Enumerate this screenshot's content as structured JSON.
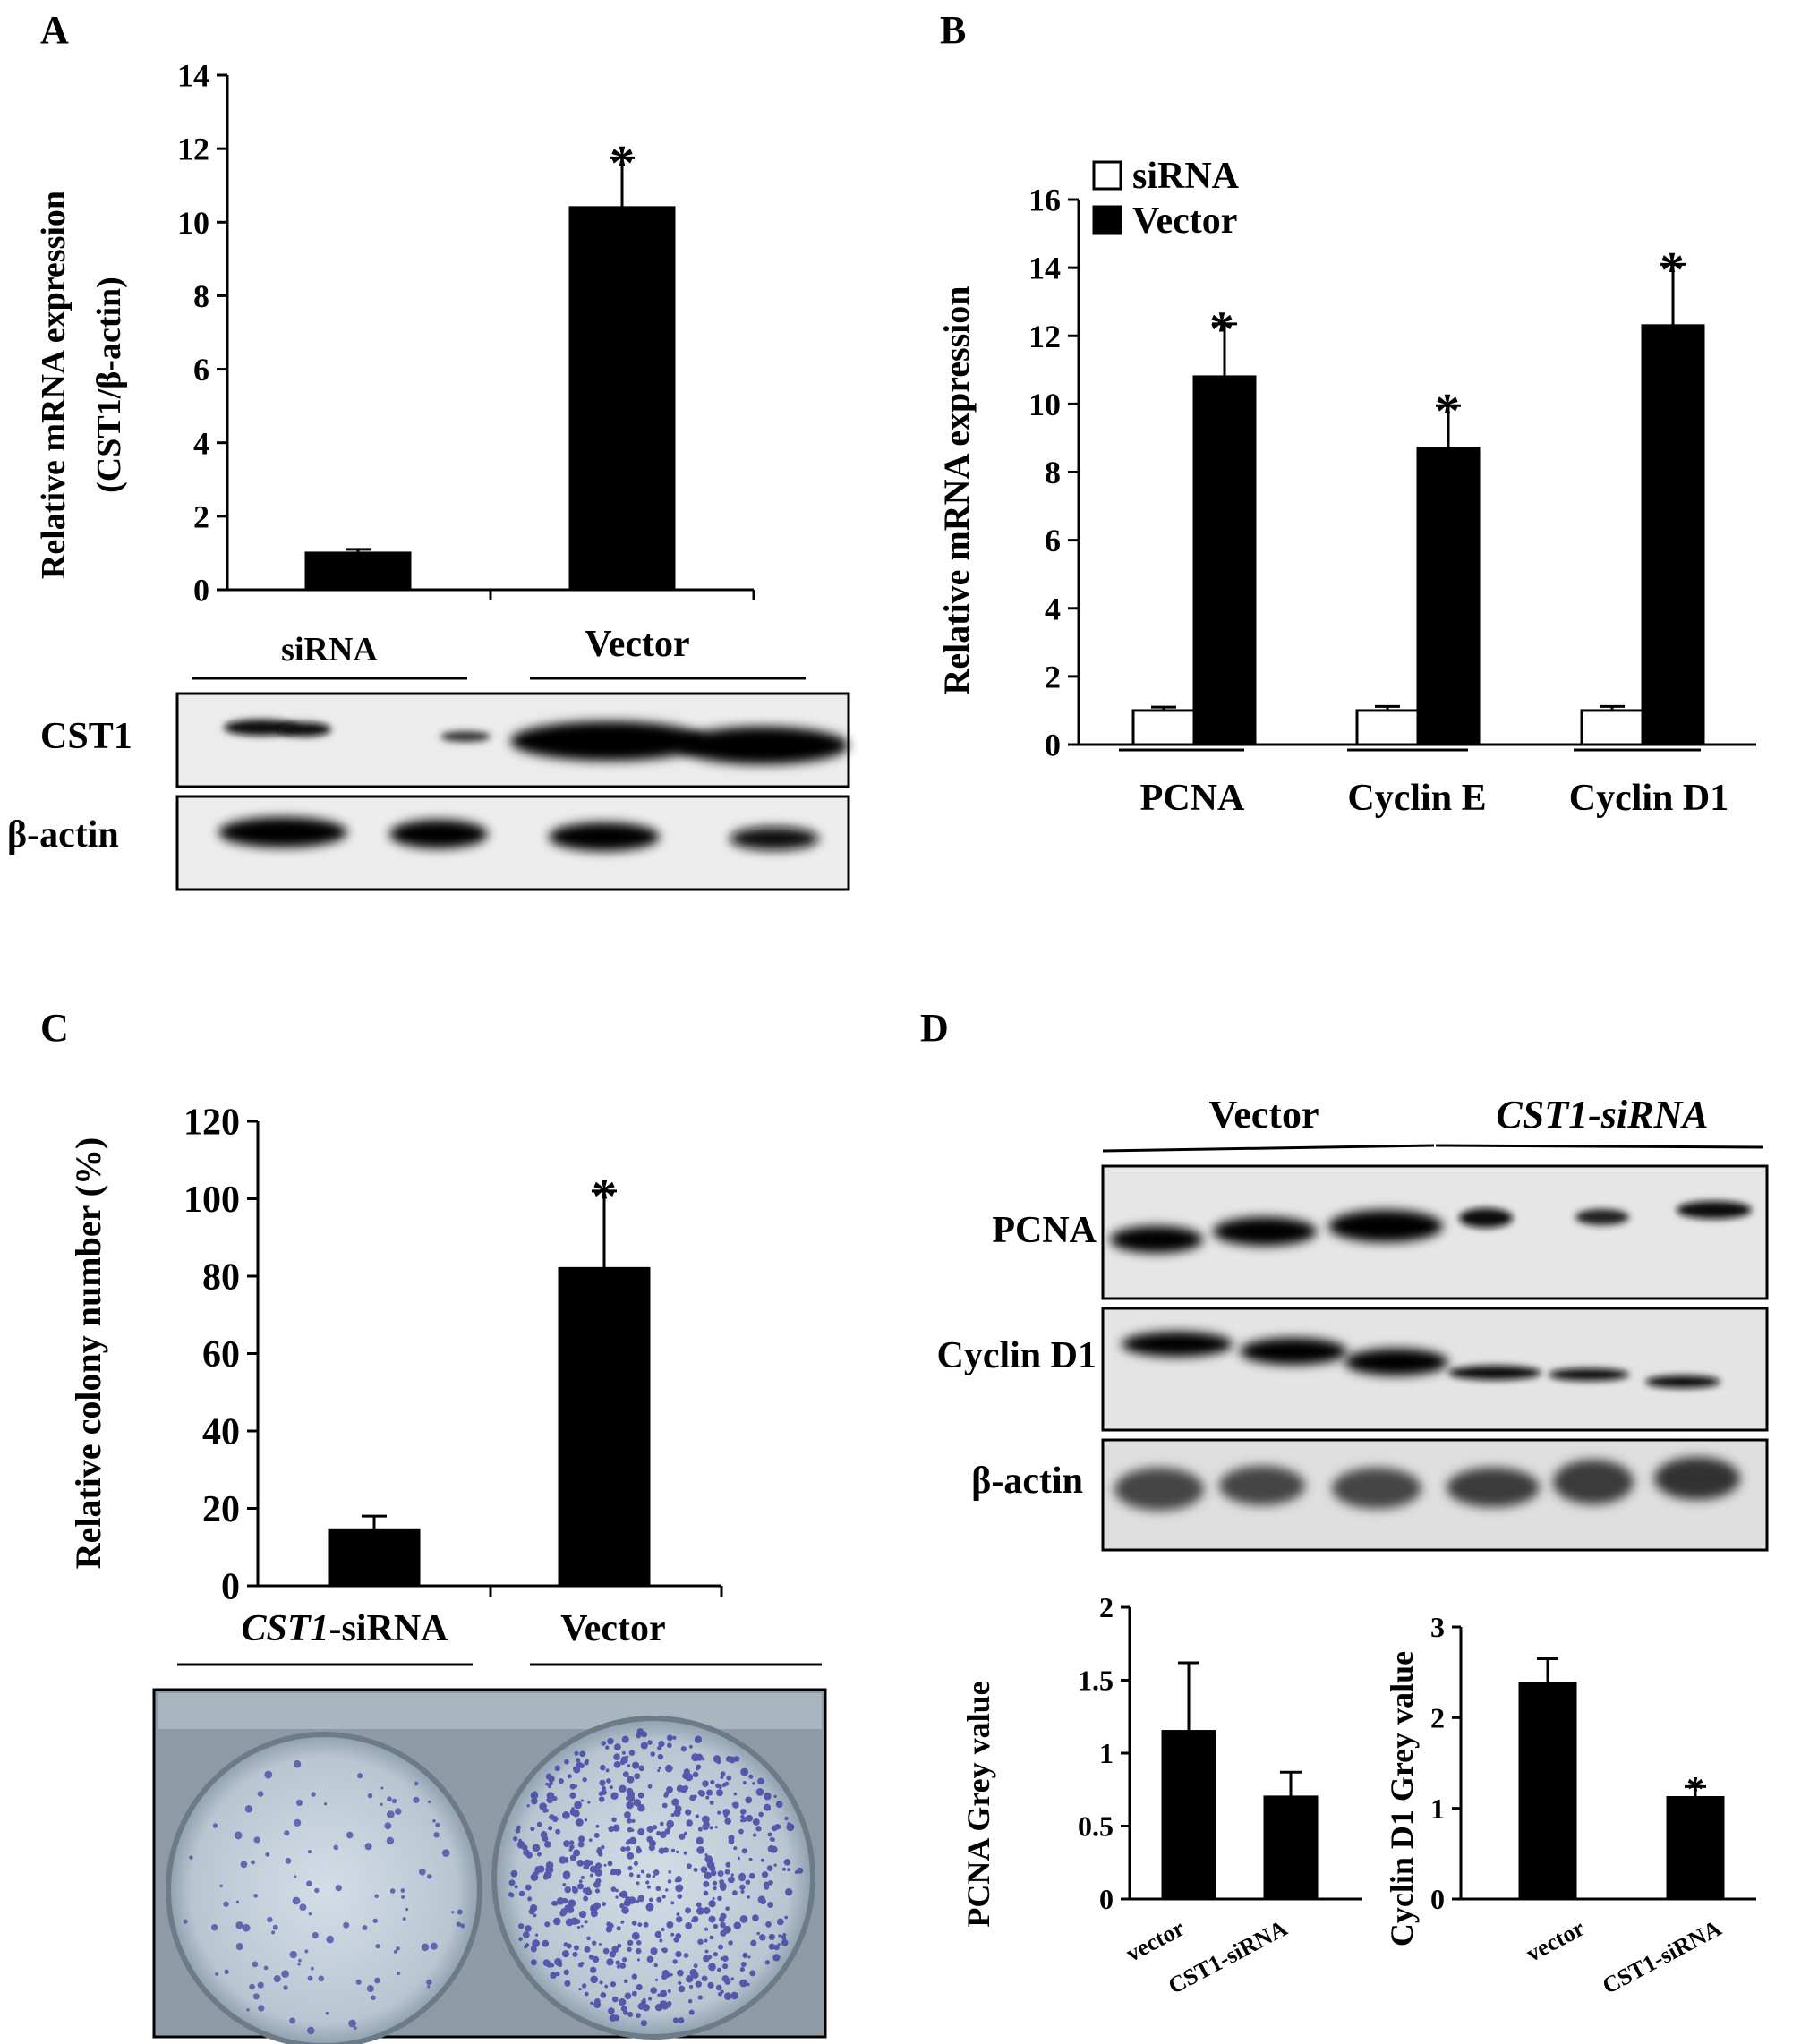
{
  "panels": {
    "A": {
      "letter": "A",
      "chart_data": {
        "type": "bar",
        "title": "",
        "ylabel_lines": [
          "Relative mRNA expression",
          "(CST1/β-actin)"
        ],
        "categories": [
          "siRNA",
          "Vector"
        ],
        "values": [
          1.0,
          10.4
        ],
        "errors": [
          0.1,
          1.35
        ],
        "significance": [
          "",
          "*"
        ],
        "yticks": [
          "0",
          "2",
          "4",
          "6",
          "8",
          "10",
          "12",
          "14"
        ],
        "ylim": [
          0,
          14
        ],
        "bar_color": "#000000"
      },
      "blot": {
        "groups": [
          "siRNA",
          "Vector"
        ],
        "rows": [
          "CST1",
          "β-actin"
        ]
      }
    },
    "B": {
      "letter": "B",
      "chart_data": {
        "type": "bar",
        "title": "",
        "ylabel": "Relative mRNA expression",
        "categories": [
          "PCNA",
          "Cyclin E",
          "Cyclin D1"
        ],
        "series": [
          {
            "name": "siRNA",
            "values": [
              1.0,
              1.0,
              1.0
            ],
            "errors": [
              0.1,
              0.12,
              0.12
            ],
            "color": "#ffffff"
          },
          {
            "name": "Vector",
            "values": [
              10.8,
              8.7,
              12.3
            ],
            "errors": [
              1.55,
              1.25,
              1.8
            ],
            "color": "#000000"
          }
        ],
        "significance": [
          "*",
          "*",
          "*"
        ],
        "yticks": [
          "0",
          "2",
          "4",
          "6",
          "8",
          "10",
          "12",
          "14",
          "16"
        ],
        "ylim": [
          0,
          16
        ],
        "legend_position": "top-left"
      }
    },
    "C": {
      "letter": "C",
      "chart_data": {
        "type": "bar",
        "title": "",
        "ylabel": "Relative colony number (%)",
        "categories": [
          {
            "italic": "CST1",
            "rest": "-siRNA"
          },
          {
            "italic": "",
            "rest": "Vector"
          }
        ],
        "values": [
          14.5,
          82
        ],
        "errors": [
          3.5,
          20
        ],
        "significance": [
          "",
          "*"
        ],
        "yticks": [
          "0",
          "20",
          "40",
          "60",
          "80",
          "100",
          "120"
        ],
        "ylim": [
          0,
          120
        ],
        "bar_color": "#000000"
      }
    },
    "D": {
      "letter": "D",
      "blot": {
        "groups": [
          "Vector",
          "CST1-siRNA"
        ],
        "rows": [
          "PCNA",
          "Cyclin D1",
          "β-actin"
        ]
      },
      "charts": [
        {
          "chart_data": {
            "type": "bar",
            "title": "",
            "ylabel": "PCNA Grey value",
            "categories": [
              "vector",
              "CST1-siRNA"
            ],
            "values": [
              1.15,
              0.7
            ],
            "errors": [
              0.47,
              0.17
            ],
            "significance": [
              "",
              ""
            ],
            "yticks": [
              "0",
              "0.5",
              "1",
              "1.5",
              "2"
            ],
            "ylim": [
              0,
              2
            ],
            "bar_color": "#000000"
          }
        },
        {
          "chart_data": {
            "type": "bar",
            "title": "",
            "ylabel": "Cyclin D1 Grey value",
            "categories": [
              "vector",
              "CST1-siRNA"
            ],
            "values": [
              2.38,
              1.12
            ],
            "errors": [
              0.27,
              0.12
            ],
            "significance": [
              "",
              "*"
            ],
            "yticks": [
              "0",
              "1",
              "2",
              "3"
            ],
            "ylim": [
              0,
              3
            ],
            "bar_color": "#000000"
          }
        }
      ]
    }
  }
}
